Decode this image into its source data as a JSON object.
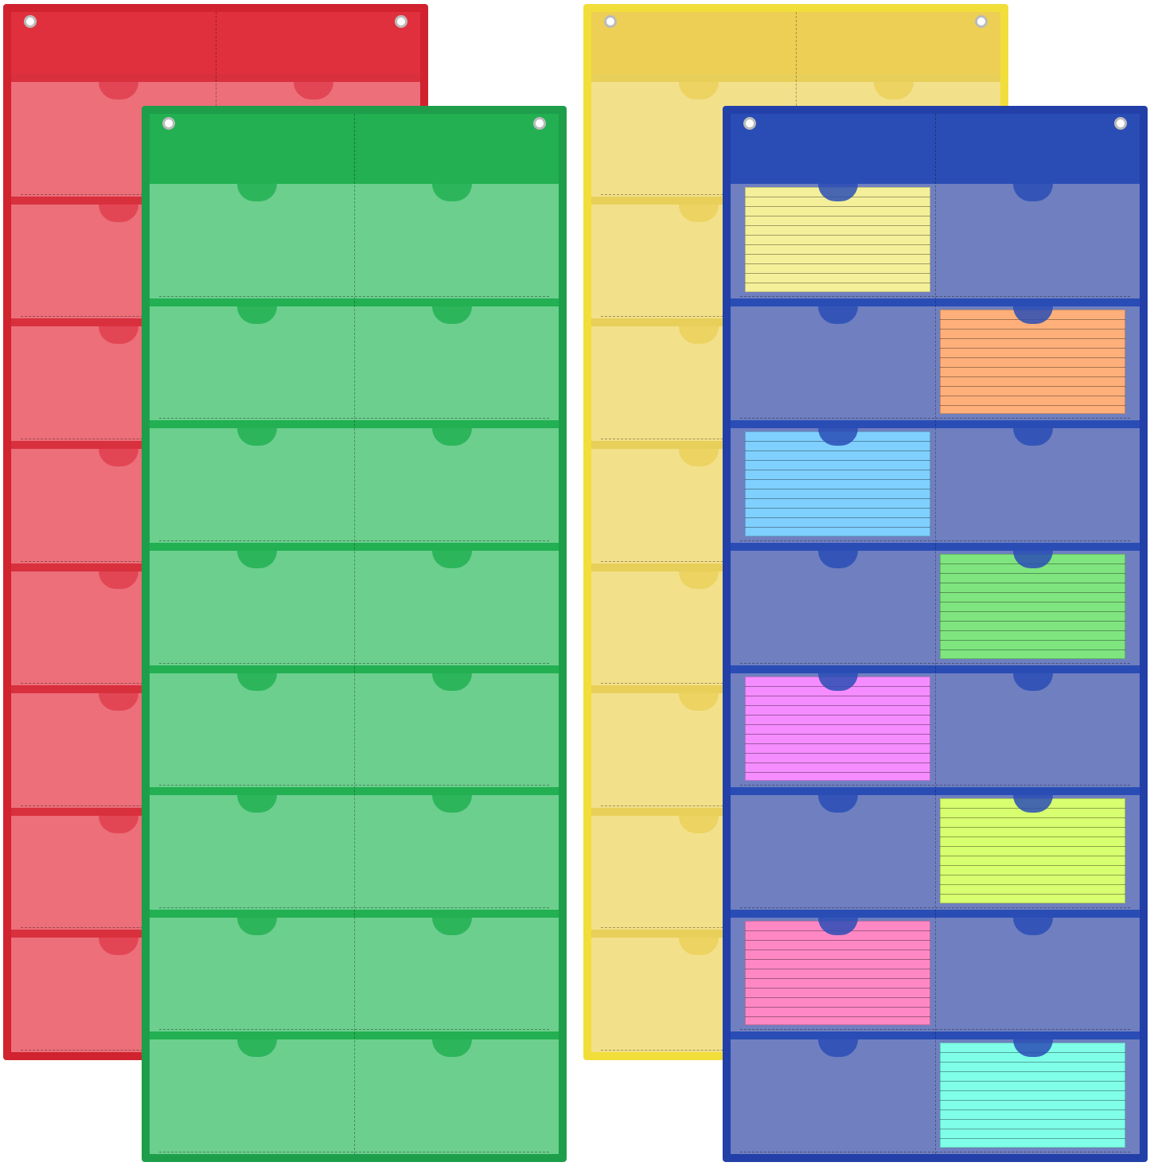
{
  "charts": [
    {
      "name": "red",
      "border": "#d0222f",
      "header": "#e0303d",
      "band": "#d9303e",
      "pocket": "#ec6f7a",
      "notch": "#e0404d",
      "cards": []
    },
    {
      "name": "yellow",
      "border": "#f2de3a",
      "header": "#eccf54",
      "band": "#e8cf5a",
      "pocket": "#f3e08a",
      "notch": "#ead05a",
      "cards": []
    },
    {
      "name": "green",
      "border": "#1e9e4a",
      "header": "#22b052",
      "band": "#22b052",
      "pocket": "#6ccf8e",
      "notch": "#22b052",
      "cards": []
    },
    {
      "name": "blue",
      "border": "#2240a8",
      "header": "#2a4db5",
      "band": "#2a4db5",
      "pocket": "#6f7fc0",
      "notch": "#2a4db5",
      "cards": [
        {
          "row": 0,
          "col": 0,
          "color": "#f4f09a"
        },
        {
          "row": 1,
          "col": 1,
          "color": "#ffb07a"
        },
        {
          "row": 2,
          "col": 0,
          "color": "#7fd0ff"
        },
        {
          "row": 3,
          "col": 1,
          "color": "#7fe57f"
        },
        {
          "row": 4,
          "col": 0,
          "color": "#f58cff"
        },
        {
          "row": 5,
          "col": 1,
          "color": "#d8ff70"
        },
        {
          "row": 6,
          "col": 0,
          "color": "#ff88c4"
        },
        {
          "row": 7,
          "col": 1,
          "color": "#80ffe8"
        }
      ]
    }
  ]
}
